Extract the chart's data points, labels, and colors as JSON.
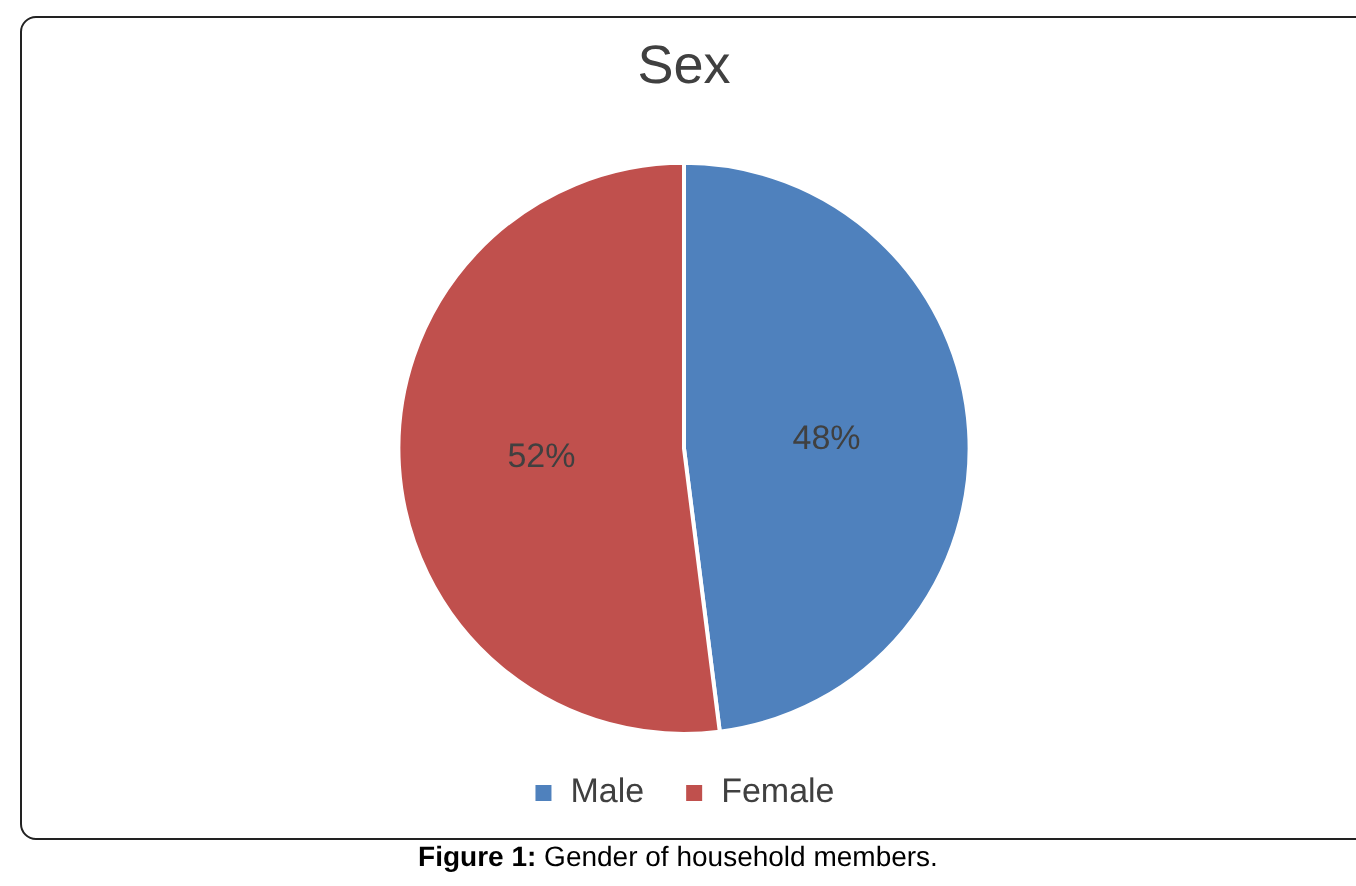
{
  "chart_data": {
    "type": "pie",
    "title": "Sex",
    "categories": [
      "Male",
      "Female"
    ],
    "values": [
      48,
      52
    ],
    "colors": [
      "#4f81bd",
      "#c0504d"
    ],
    "value_labels": [
      "48%",
      "52%"
    ],
    "legend": "bottom",
    "annotations": [
      "Figure 1: Gender of household members."
    ]
  }
}
